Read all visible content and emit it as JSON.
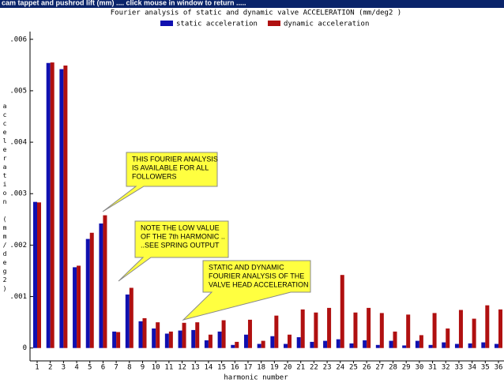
{
  "window_title": "cam tappet and pushrod lift (mm) .... click mouse in window to return .....",
  "chart_data": {
    "type": "bar",
    "title": "Fourier analysis of static and dynamic valve ACCELERATION (mm/deg2 )",
    "x_label": "harmonic number",
    "y_label": "acceleration (mm/deg2)",
    "categories": [
      "1",
      "2",
      "3",
      "4",
      "5",
      "6",
      "7",
      "8",
      "9",
      "10",
      "11",
      "12",
      "13",
      "14",
      "15",
      "16",
      "17",
      "18",
      "19",
      "20",
      "21",
      "22",
      "23",
      "24",
      "25",
      "26",
      "27",
      "28",
      "29",
      "30",
      "31",
      "32",
      "33",
      "34",
      "35",
      "36"
    ],
    "series": [
      {
        "name": "static acceleration",
        "color": "#1010b0",
        "values": [
          0.00284,
          0.00554,
          0.00542,
          0.00157,
          0.00212,
          0.00242,
          0.00032,
          0.00104,
          0.00052,
          0.00038,
          0.00028,
          0.00034,
          0.00035,
          0.00015,
          0.00032,
          6e-05,
          0.00026,
          8e-05,
          0.00023,
          8e-05,
          0.00021,
          0.00012,
          0.00014,
          0.00017,
          9e-05,
          0.00015,
          6e-05,
          0.00014,
          5e-05,
          0.00014,
          6e-05,
          0.00011,
          8e-05,
          9e-05,
          0.00011,
          8e-05
        ]
      },
      {
        "name": "dynamic acceleration",
        "color": "#b01010",
        "values": [
          0.00283,
          0.00555,
          0.00549,
          0.0016,
          0.00224,
          0.00258,
          0.00031,
          0.00117,
          0.00058,
          0.0005,
          0.00032,
          0.00049,
          0.0005,
          0.00026,
          0.00054,
          0.00012,
          0.00055,
          0.00014,
          0.00063,
          0.00026,
          0.00075,
          0.00069,
          0.00078,
          0.00142,
          0.00069,
          0.00078,
          0.00068,
          0.00032,
          0.00065,
          0.00025,
          0.00068,
          0.00038,
          0.00074,
          0.00057,
          0.00083,
          0.00075
        ]
      }
    ],
    "ylim": [
      -0.00025,
      0.00615
    ],
    "yticks": [
      0,
      {
        "value": 0.001,
        "label": ".001"
      },
      {
        "value": 0.002,
        "label": ".002"
      },
      {
        "value": 0.003,
        "label": ".003"
      },
      {
        "value": 0.004,
        "label": ".004"
      },
      {
        "value": 0.005,
        "label": ".005"
      },
      {
        "value": 0.006,
        "label": ".006"
      }
    ],
    "annotations": [
      {
        "lines": [
          "THIS FOURIER ANALYSIS",
          "IS AVAILABLE FOR ALL",
          "FOLLOWERS"
        ]
      },
      {
        "lines": [
          "NOTE THE LOW VALUE",
          "OF THE 7th HARMONIC ..",
          "..SEE SPRING OUTPUT"
        ]
      },
      {
        "lines": [
          "STATIC AND DYNAMIC",
          "FOURIER ANALYSIS OF THE",
          "VALVE HEAD ACCELERATION"
        ]
      }
    ]
  }
}
